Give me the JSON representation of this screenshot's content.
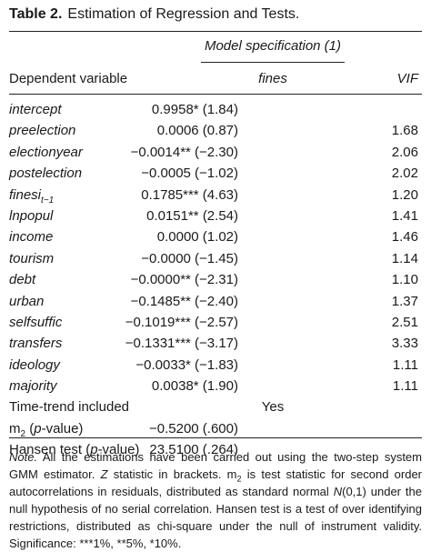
{
  "caption": {
    "label": "Table 2.",
    "text": "Estimation of Regression and Tests."
  },
  "header": {
    "model_spec": "Model specification (1)",
    "dependent_variable": "Dependent variable",
    "fines": "fines",
    "vif": "VIF"
  },
  "rows": [
    {
      "var": "intercept",
      "coef": "0.9958* (1.84)",
      "vif": ""
    },
    {
      "var": "preelection",
      "coef": "0.0006 (0.87)",
      "vif": "1.68"
    },
    {
      "var": "electionyear",
      "coef": "−0.0014** (−2.30)",
      "vif": "2.06"
    },
    {
      "var": "postelection",
      "coef": "−0.0005 (−1.02)",
      "vif": "2.02"
    },
    {
      "var": "finesi",
      "var_sub": "t−1",
      "coef": "0.1785*** (4.63)",
      "vif": "1.20"
    },
    {
      "var": "lnpopul",
      "coef": "0.0151** (2.54)",
      "vif": "1.41"
    },
    {
      "var": "income",
      "coef": "0.0000 (1.02)",
      "vif": "1.46"
    },
    {
      "var": "tourism",
      "coef": "−0.0000 (−1.45)",
      "vif": "1.14"
    },
    {
      "var": "debt",
      "coef": "−0.0000** (−2.31)",
      "vif": "1.10"
    },
    {
      "var": "urban",
      "coef": "−0.1485** (−2.40)",
      "vif": "1.37"
    },
    {
      "var": "selfsuffic",
      "coef": "−0.1019*** (−2.57)",
      "vif": "2.51"
    },
    {
      "var": "transfers",
      "coef": "−0.1331*** (−3.17)",
      "vif": "3.33"
    },
    {
      "var": "ideology",
      "coef": "−0.0033* (−1.83)",
      "vif": "1.11"
    },
    {
      "var": "majority",
      "coef": "0.0038* (1.90)",
      "vif": "1.11"
    }
  ],
  "tests": {
    "time_trend_label": "Time-trend included",
    "time_trend_value": "Yes",
    "m2_label_m": "m",
    "m2_label_sub": "2",
    "m2_label_open": " (",
    "m2_label_p": "p",
    "m2_label_close": "-value)",
    "m2_value": "−0.5200 (.600)",
    "hansen_label_pre": "Hansen test (",
    "hansen_label_p": "p",
    "hansen_label_post": "-value)",
    "hansen_value": "23.5100 (.264)"
  },
  "note": {
    "label": "Note.",
    "t1": " All the estimations have been carried out using the two-step system GMM estimator. ",
    "z": "Z",
    "t2": " statistic in brackets. m",
    "sub": "2",
    "t3": " is test statistic for second order autocorrelations in residuals, distributed as standard normal ",
    "n": "N",
    "t4": "(0,1) under the null hypothesis of no serial correlation. Hansen test is a test of over identifying restrictions, distributed as chi-square under the null of instrument validity. Significance: ***1%, **5%, *10%."
  }
}
